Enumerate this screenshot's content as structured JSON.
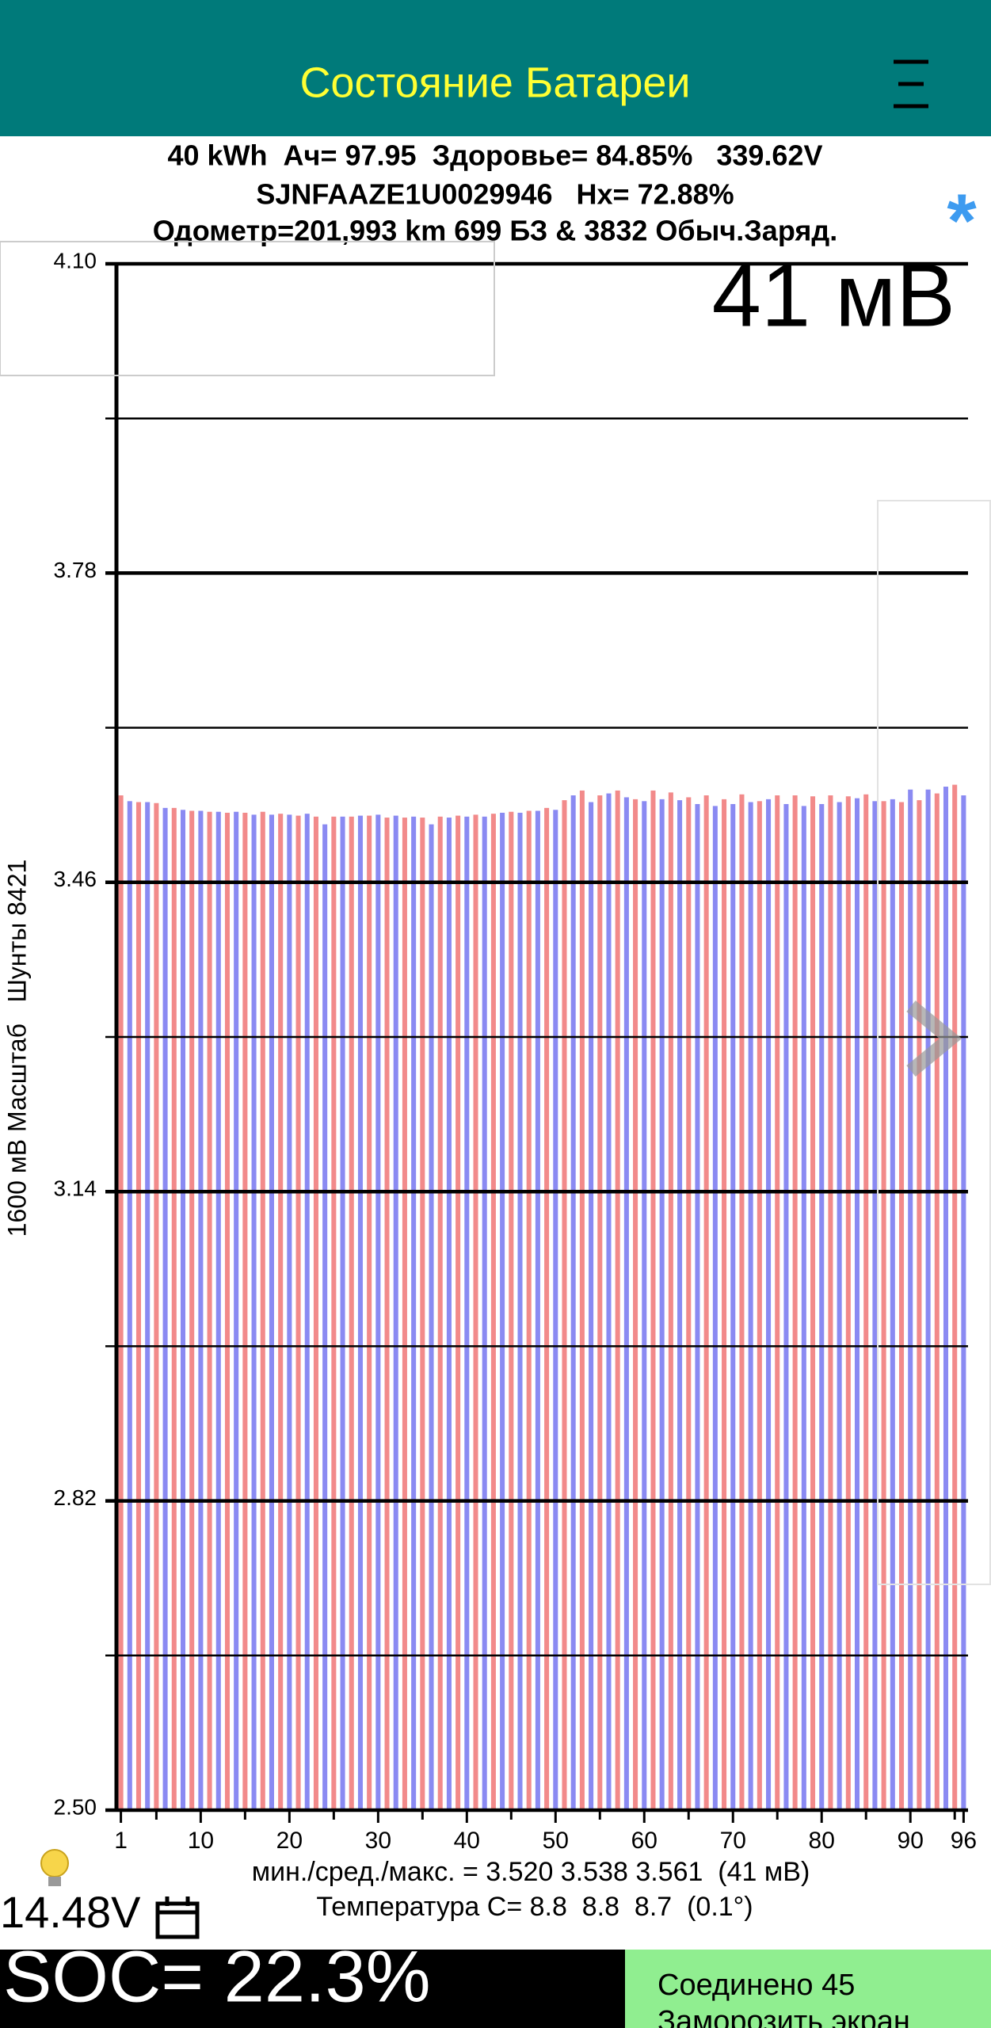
{
  "header": {
    "title": "Состояние Батареи"
  },
  "info": {
    "lines": [
      "40 kWh  Ач= 97.95  Здоровье= 84.85%   339.62V",
      "SJNFAAZE1U0029946   Hx= 72.88%",
      "Одометр=201,993 km 699 БЗ & 3832 Обыч.Заряд."
    ],
    "star": "*"
  },
  "chart_data": {
    "type": "bar",
    "annotation": "41 мВ",
    "y_label": "1600 мВ Масштаб   Шунты 8421",
    "categories": [
      1,
      2,
      3,
      4,
      5,
      6,
      7,
      8,
      9,
      10,
      11,
      12,
      13,
      14,
      15,
      16,
      17,
      18,
      19,
      20,
      21,
      22,
      23,
      24,
      25,
      26,
      27,
      28,
      29,
      30,
      31,
      32,
      33,
      34,
      35,
      36,
      37,
      38,
      39,
      40,
      41,
      42,
      43,
      44,
      45,
      46,
      47,
      48,
      49,
      50,
      51,
      52,
      53,
      54,
      55,
      56,
      57,
      58,
      59,
      60,
      61,
      62,
      63,
      64,
      65,
      66,
      67,
      68,
      69,
      70,
      71,
      72,
      73,
      74,
      75,
      76,
      77,
      78,
      79,
      80,
      81,
      82,
      83,
      84,
      85,
      86,
      87,
      88,
      89,
      90,
      91,
      92,
      93,
      94,
      95,
      96
    ],
    "values": [
      3.55,
      3.544,
      3.543,
      3.543,
      3.542,
      3.537,
      3.537,
      3.535,
      3.534,
      3.534,
      3.533,
      3.533,
      3.532,
      3.533,
      3.532,
      3.53,
      3.533,
      3.53,
      3.531,
      3.53,
      3.529,
      3.531,
      3.528,
      3.52,
      3.528,
      3.528,
      3.528,
      3.529,
      3.529,
      3.53,
      3.527,
      3.529,
      3.527,
      3.528,
      3.527,
      3.52,
      3.528,
      3.527,
      3.529,
      3.528,
      3.53,
      3.528,
      3.531,
      3.532,
      3.533,
      3.532,
      3.534,
      3.534,
      3.537,
      3.535,
      3.545,
      3.55,
      3.555,
      3.543,
      3.55,
      3.552,
      3.555,
      3.548,
      3.546,
      3.544,
      3.555,
      3.546,
      3.553,
      3.545,
      3.548,
      3.541,
      3.55,
      3.539,
      3.546,
      3.541,
      3.551,
      3.543,
      3.544,
      3.546,
      3.55,
      3.541,
      3.55,
      3.539,
      3.549,
      3.541,
      3.55,
      3.543,
      3.549,
      3.547,
      3.551,
      3.544,
      3.544,
      3.546,
      3.543,
      3.556,
      3.545,
      3.556,
      3.552,
      3.559,
      3.561,
      3.55
    ],
    "bar_colors": [
      "#f28a8a",
      "#8a8af2"
    ],
    "xlim": [
      0.5,
      96.5
    ],
    "xticks": [
      1,
      10,
      20,
      30,
      40,
      50,
      60,
      70,
      80,
      90,
      96
    ],
    "x_minor_ticks": [
      5,
      15,
      25,
      35,
      45,
      55,
      65,
      75,
      85,
      95
    ],
    "ylim": [
      2.5,
      4.1
    ],
    "yticks": [
      {
        "value": 4.1,
        "label": "4.10"
      },
      3.78,
      3.46,
      3.14,
      2.82,
      {
        "value": 2.5,
        "label": "2.50"
      }
    ],
    "y_minor_grid": [
      3.94,
      3.62,
      3.3,
      2.98,
      2.66
    ],
    "grid": true
  },
  "status": {
    "stats": "мин./сред./макс. = 3.520 3.538 3.561  (41 мВ)",
    "temperature": "Температура С= 8.8  8.8  8.7  (0.1°)",
    "voltage": "14.48V"
  },
  "footer": {
    "soc": "SOC= 22.3%",
    "connection": "Соединено 45",
    "freeze": "Заморозить экран"
  }
}
